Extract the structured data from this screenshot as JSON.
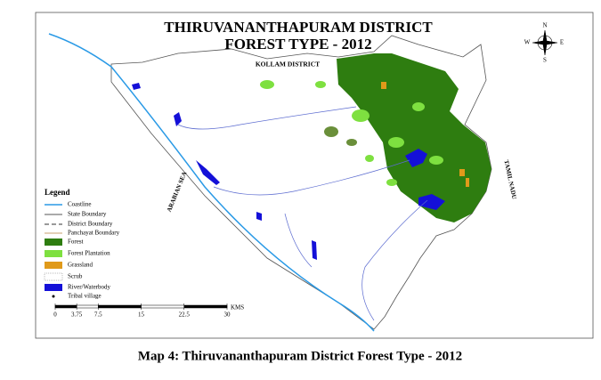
{
  "map": {
    "title_lines": [
      "THIRUVANANTHAPURAM DISTRICT",
      "FOREST TYPE - 2012"
    ],
    "labels": {
      "kollam": "KOLLAM DISTRICT",
      "sea": "ARABIAN SEA",
      "tamil": "TAMIL NADU"
    },
    "compass": {
      "n": "N",
      "s": "S",
      "e": "E",
      "w": "W"
    },
    "legend": {
      "title": "Legend",
      "items": [
        "Coastline",
        "State Boundary",
        "District Boundary",
        "Panchayat Boundary",
        "Forest",
        "Forest Plantation",
        "Grassland",
        "Scrub",
        "River/Waterbody",
        "Tribal village"
      ]
    },
    "scale": {
      "ticks": [
        0,
        3.75,
        7.5,
        15,
        22.5,
        30
      ],
      "unit": "KMS"
    }
  },
  "caption": "Map 4: Thiruvananthapuram District Forest Type - 2012"
}
